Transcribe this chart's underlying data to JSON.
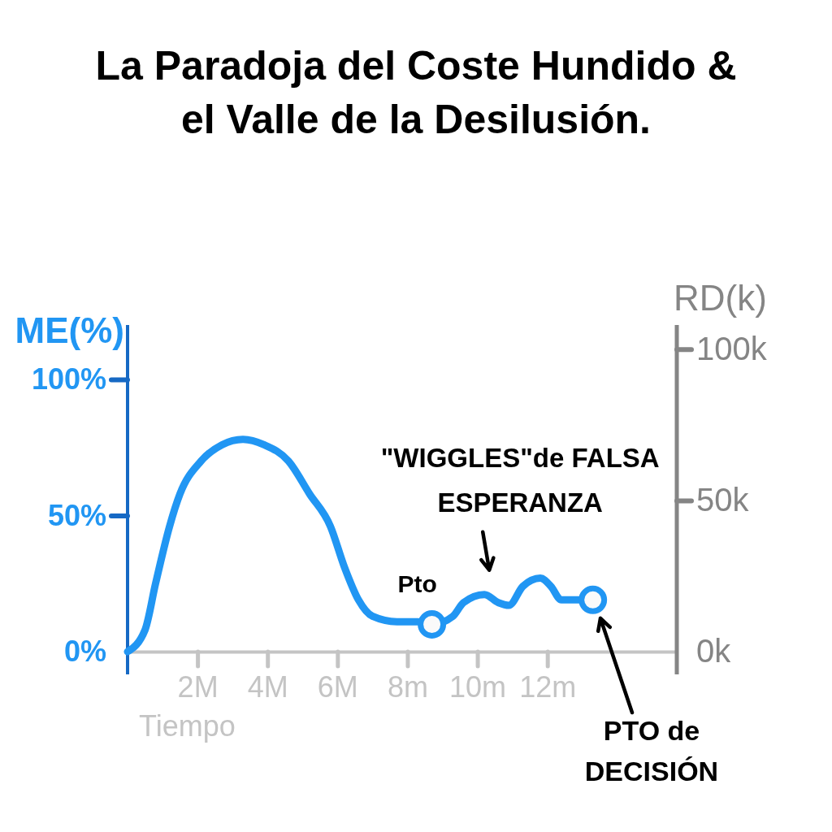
{
  "chart_data": {
    "type": "line",
    "title": "La Paradoja del Coste Hundido & el Valle de la Desilusión.",
    "xlabel": "Tiempo",
    "ylabel": "ME(%)",
    "y2label": "RD(k)",
    "xlim": [
      0,
      15.7
    ],
    "xticks": [
      {
        "value": 2,
        "label": "2M"
      },
      {
        "value": 4,
        "label": "4M"
      },
      {
        "value": 6,
        "label": "6M"
      },
      {
        "value": 8,
        "label": "8m"
      },
      {
        "value": 10,
        "label": "10m"
      },
      {
        "value": 12,
        "label": "12m"
      }
    ],
    "ylim": [
      0,
      120
    ],
    "yticks": [
      {
        "value": 0,
        "label": "0%"
      },
      {
        "value": 50,
        "label": "50%"
      },
      {
        "value": 100,
        "label": "100%"
      }
    ],
    "y2lim": [
      0,
      108
    ],
    "y2ticks": [
      {
        "value": 0,
        "label": "0k"
      },
      {
        "value": 50,
        "label": "50k"
      },
      {
        "value": 100,
        "label": "100k"
      }
    ],
    "series": [
      {
        "type": "line",
        "color": "#2196f3",
        "x": [
          0,
          0.5,
          0.8,
          1.2,
          1.5,
          2.1,
          2.7,
          3.3,
          3.9,
          4.6,
          5.2,
          5.8,
          6.2,
          6.6,
          7,
          7.7,
          8.3,
          8.7,
          9.3,
          9.6,
          10.2,
          10.6,
          10.9,
          11.3,
          11.8,
          12.1,
          12.4,
          12.7,
          13.3
        ],
        "values": [
          0,
          8,
          25,
          46,
          58,
          70,
          76,
          78,
          76,
          70,
          58,
          46,
          31,
          19,
          13,
          11,
          11,
          10,
          13,
          18,
          21,
          18,
          17,
          24,
          27,
          24,
          19,
          19,
          19
        ]
      },
      {
        "type": "scatter",
        "marker": "circle",
        "color": "#2196f3",
        "x": [
          8.7,
          13.3
        ],
        "values": [
          10,
          19
        ]
      }
    ],
    "annotations": [
      {
        "text": "Pto",
        "x": 8.7,
        "y": 10
      },
      {
        "text": "\"WIGGLES\"de FALSA ESPERANZA",
        "x": 10.2,
        "y": 21
      },
      "PTO de DECISIÓN"
    ]
  }
}
